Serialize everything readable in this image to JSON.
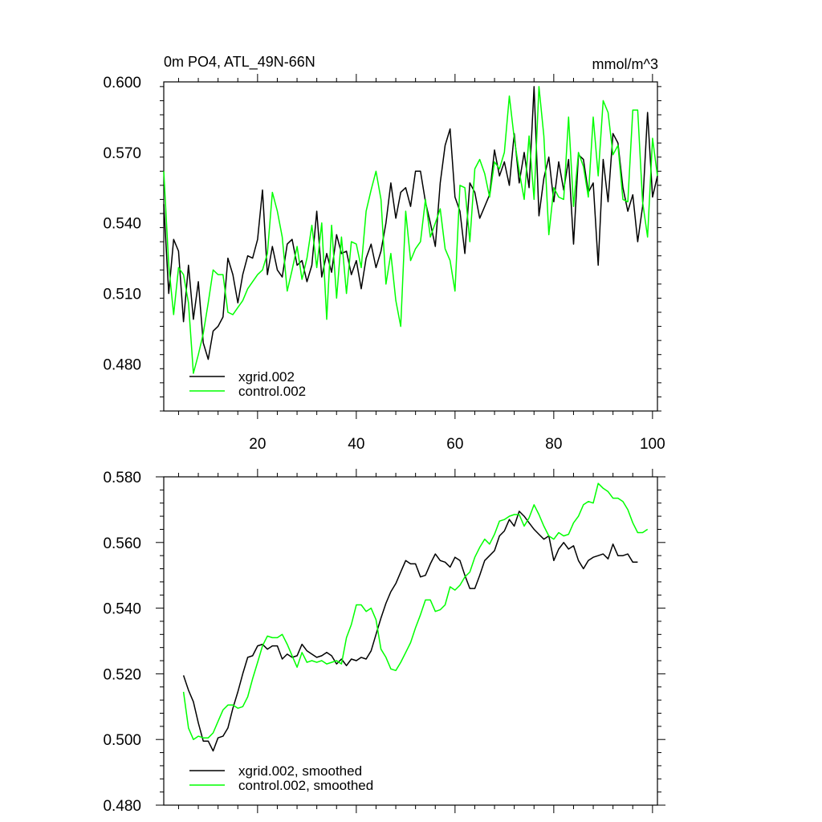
{
  "chart_data": [
    {
      "type": "line",
      "title": "0m PO4, ATL_49N-66N",
      "units": "mmol/m^3",
      "xlim": [
        1,
        101
      ],
      "ylim": [
        0.46,
        0.6
      ],
      "x_ticks": [
        20,
        40,
        60,
        80,
        100
      ],
      "x_tick_labels": [
        "20",
        "40",
        "60",
        "80",
        "100"
      ],
      "y_ticks": [
        0.48,
        0.51,
        0.54,
        0.57,
        0.6
      ],
      "y_tick_labels": [
        "0.480",
        "0.510",
        "0.540",
        "0.570",
        "0.600"
      ],
      "legend_position": "bottom-left",
      "series": [
        {
          "name": "xgrid.002",
          "color": "#000000",
          "x_start": 1,
          "values": [
            0.548,
            0.51,
            0.533,
            0.528,
            0.498,
            0.522,
            0.499,
            0.515,
            0.489,
            0.482,
            0.494,
            0.496,
            0.5,
            0.525,
            0.518,
            0.506,
            0.518,
            0.526,
            0.525,
            0.533,
            0.554,
            0.518,
            0.53,
            0.52,
            0.517,
            0.531,
            0.533,
            0.522,
            0.524,
            0.515,
            0.522,
            0.545,
            0.517,
            0.527,
            0.519,
            0.535,
            0.527,
            0.528,
            0.518,
            0.524,
            0.512,
            0.525,
            0.531,
            0.521,
            0.528,
            0.54,
            0.557,
            0.542,
            0.553,
            0.555,
            0.547,
            0.562,
            0.562,
            0.549,
            0.54,
            0.53,
            0.557,
            0.573,
            0.58,
            0.551,
            0.545,
            0.527,
            0.557,
            0.553,
            0.542,
            0.547,
            0.552,
            0.571,
            0.56,
            0.566,
            0.556,
            0.578,
            0.557,
            0.57,
            0.555,
            0.598,
            0.543,
            0.559,
            0.568,
            0.549,
            0.566,
            0.554,
            0.567,
            0.531,
            0.569,
            0.567,
            0.553,
            0.557,
            0.522,
            0.567,
            0.549,
            0.578,
            0.574,
            0.555,
            0.545,
            0.552,
            0.532,
            0.547,
            0.587,
            0.551,
            0.56
          ]
        },
        {
          "name": "control.002",
          "color": "#00ff00",
          "x_start": 1,
          "values": [
            0.562,
            0.522,
            0.501,
            0.521,
            0.518,
            0.506,
            0.476,
            0.484,
            0.493,
            0.506,
            0.52,
            0.518,
            0.518,
            0.502,
            0.501,
            0.504,
            0.507,
            0.512,
            0.515,
            0.518,
            0.52,
            0.527,
            0.553,
            0.545,
            0.534,
            0.511,
            0.52,
            0.53,
            0.516,
            0.525,
            0.539,
            0.521,
            0.54,
            0.499,
            0.539,
            0.508,
            0.534,
            0.51,
            0.532,
            0.531,
            0.521,
            0.545,
            0.554,
            0.562,
            0.55,
            0.514,
            0.527,
            0.507,
            0.496,
            0.545,
            0.524,
            0.529,
            0.532,
            0.55,
            0.534,
            0.54,
            0.546,
            0.529,
            0.524,
            0.511,
            0.556,
            0.555,
            0.532,
            0.563,
            0.567,
            0.561,
            0.551,
            0.566,
            0.563,
            0.57,
            0.594,
            0.576,
            0.562,
            0.55,
            0.577,
            0.55,
            0.598,
            0.577,
            0.535,
            0.555,
            0.551,
            0.55,
            0.585,
            0.547,
            0.57,
            0.564,
            0.551,
            0.585,
            0.56,
            0.592,
            0.587,
            0.569,
            0.573,
            0.55,
            0.549,
            0.588,
            0.588,
            0.549,
            0.534,
            0.576,
            0.56
          ]
        }
      ]
    },
    {
      "type": "line",
      "title": "",
      "xlim": [
        1,
        101
      ],
      "ylim": [
        0.48,
        0.58
      ],
      "x_ticks": [
        20,
        40,
        60,
        80,
        100
      ],
      "x_tick_labels": [],
      "y_ticks": [
        0.48,
        0.5,
        0.52,
        0.54,
        0.56,
        0.58
      ],
      "y_tick_labels": [
        "0.480",
        "0.500",
        "0.520",
        "0.540",
        "0.560",
        "0.580"
      ],
      "legend_position": "bottom-left",
      "series": [
        {
          "name": "xgrid.002, smoothed",
          "color": "#000000",
          "x_start": 5,
          "values": [
            0.5195,
            0.515,
            0.5115,
            0.505,
            0.4995,
            0.4995,
            0.4965,
            0.5005,
            0.501,
            0.5035,
            0.5095,
            0.5145,
            0.52,
            0.525,
            0.5255,
            0.5285,
            0.529,
            0.5275,
            0.5285,
            0.5285,
            0.5245,
            0.526,
            0.525,
            0.5255,
            0.529,
            0.527,
            0.526,
            0.525,
            0.5255,
            0.5265,
            0.5255,
            0.523,
            0.5245,
            0.5225,
            0.5245,
            0.524,
            0.525,
            0.5245,
            0.527,
            0.532,
            0.537,
            0.5415,
            0.545,
            0.5475,
            0.551,
            0.5545,
            0.5535,
            0.5535,
            0.5495,
            0.55,
            0.5535,
            0.5565,
            0.5545,
            0.554,
            0.5525,
            0.5555,
            0.5545,
            0.55,
            0.546,
            0.546,
            0.55,
            0.5545,
            0.556,
            0.5575,
            0.562,
            0.5635,
            0.567,
            0.565,
            0.5695,
            0.568,
            0.566,
            0.564,
            0.5625,
            0.561,
            0.562,
            0.5545,
            0.558,
            0.56,
            0.558,
            0.559,
            0.5545,
            0.552,
            0.5545,
            0.5555,
            0.556,
            0.5565,
            0.555,
            0.5595,
            0.556,
            0.556,
            0.5565,
            0.554,
            0.554
          ]
        },
        {
          "name": "control.002, smoothed",
          "color": "#00ff00",
          "x_start": 5,
          "values": [
            0.5145,
            0.5035,
            0.5,
            0.501,
            0.5005,
            0.5005,
            0.502,
            0.5055,
            0.509,
            0.5105,
            0.5105,
            0.5095,
            0.51,
            0.513,
            0.5185,
            0.5235,
            0.5285,
            0.5315,
            0.531,
            0.531,
            0.532,
            0.529,
            0.5255,
            0.522,
            0.5265,
            0.5235,
            0.524,
            0.5235,
            0.524,
            0.523,
            0.5235,
            0.524,
            0.523,
            0.531,
            0.535,
            0.541,
            0.541,
            0.539,
            0.54,
            0.5365,
            0.5275,
            0.525,
            0.5215,
            0.521,
            0.5235,
            0.5265,
            0.5295,
            0.534,
            0.538,
            0.5425,
            0.5425,
            0.539,
            0.5395,
            0.541,
            0.5465,
            0.5455,
            0.547,
            0.5495,
            0.551,
            0.5555,
            0.5585,
            0.561,
            0.5595,
            0.5625,
            0.5665,
            0.567,
            0.568,
            0.5685,
            0.5685,
            0.565,
            0.5675,
            0.5715,
            0.5685,
            0.565,
            0.562,
            0.561,
            0.563,
            0.562,
            0.5625,
            0.566,
            0.568,
            0.5715,
            0.5725,
            0.572,
            0.578,
            0.5765,
            0.5755,
            0.5735,
            0.5735,
            0.5725,
            0.57,
            0.566,
            0.563,
            0.563,
            0.564
          ]
        }
      ]
    }
  ]
}
